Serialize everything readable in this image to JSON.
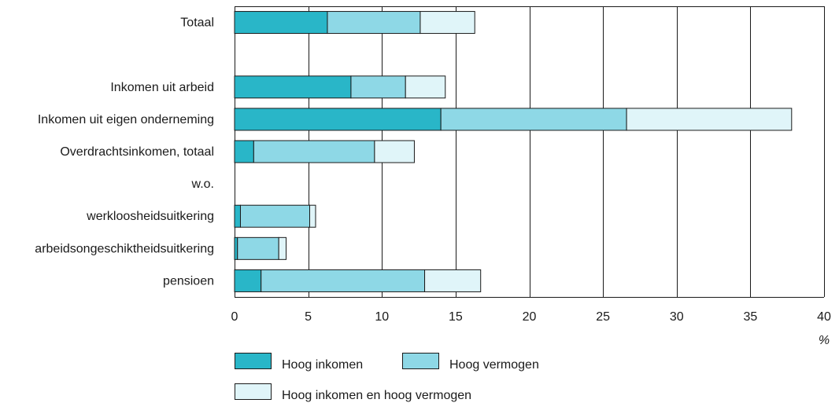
{
  "chart_data": {
    "type": "bar",
    "orientation": "horizontal",
    "stacked": true,
    "categories": [
      "Totaal",
      "",
      "Inkomen uit arbeid",
      "Inkomen uit eigen onderneming",
      "Overdrachtsinkomen, totaal",
      "w.o.",
      "werkloosheidsuitkering",
      "arbeidsongeschiktheidsuitkering",
      "pensioen"
    ],
    "series": [
      {
        "name": "Hoog inkomen",
        "color": "#29b6c8",
        "values": [
          6.3,
          null,
          7.9,
          14.0,
          1.3,
          null,
          0.4,
          0.2,
          1.8
        ]
      },
      {
        "name": "Hoog vermogen",
        "color": "#8ed8e6",
        "values": [
          6.3,
          null,
          3.7,
          12.6,
          8.2,
          null,
          4.7,
          2.8,
          11.1
        ]
      },
      {
        "name": "Hoog inkomen en hoog vermogen",
        "color": "#e0f5f9",
        "values": [
          3.7,
          null,
          2.7,
          11.2,
          2.7,
          null,
          0.4,
          0.5,
          3.8
        ]
      }
    ],
    "x_ticks": [
      0,
      5,
      10,
      15,
      20,
      25,
      30,
      35,
      40
    ],
    "xlim": [
      0,
      40
    ],
    "x_unit": "%",
    "grid": true,
    "legend_position": "bottom"
  }
}
